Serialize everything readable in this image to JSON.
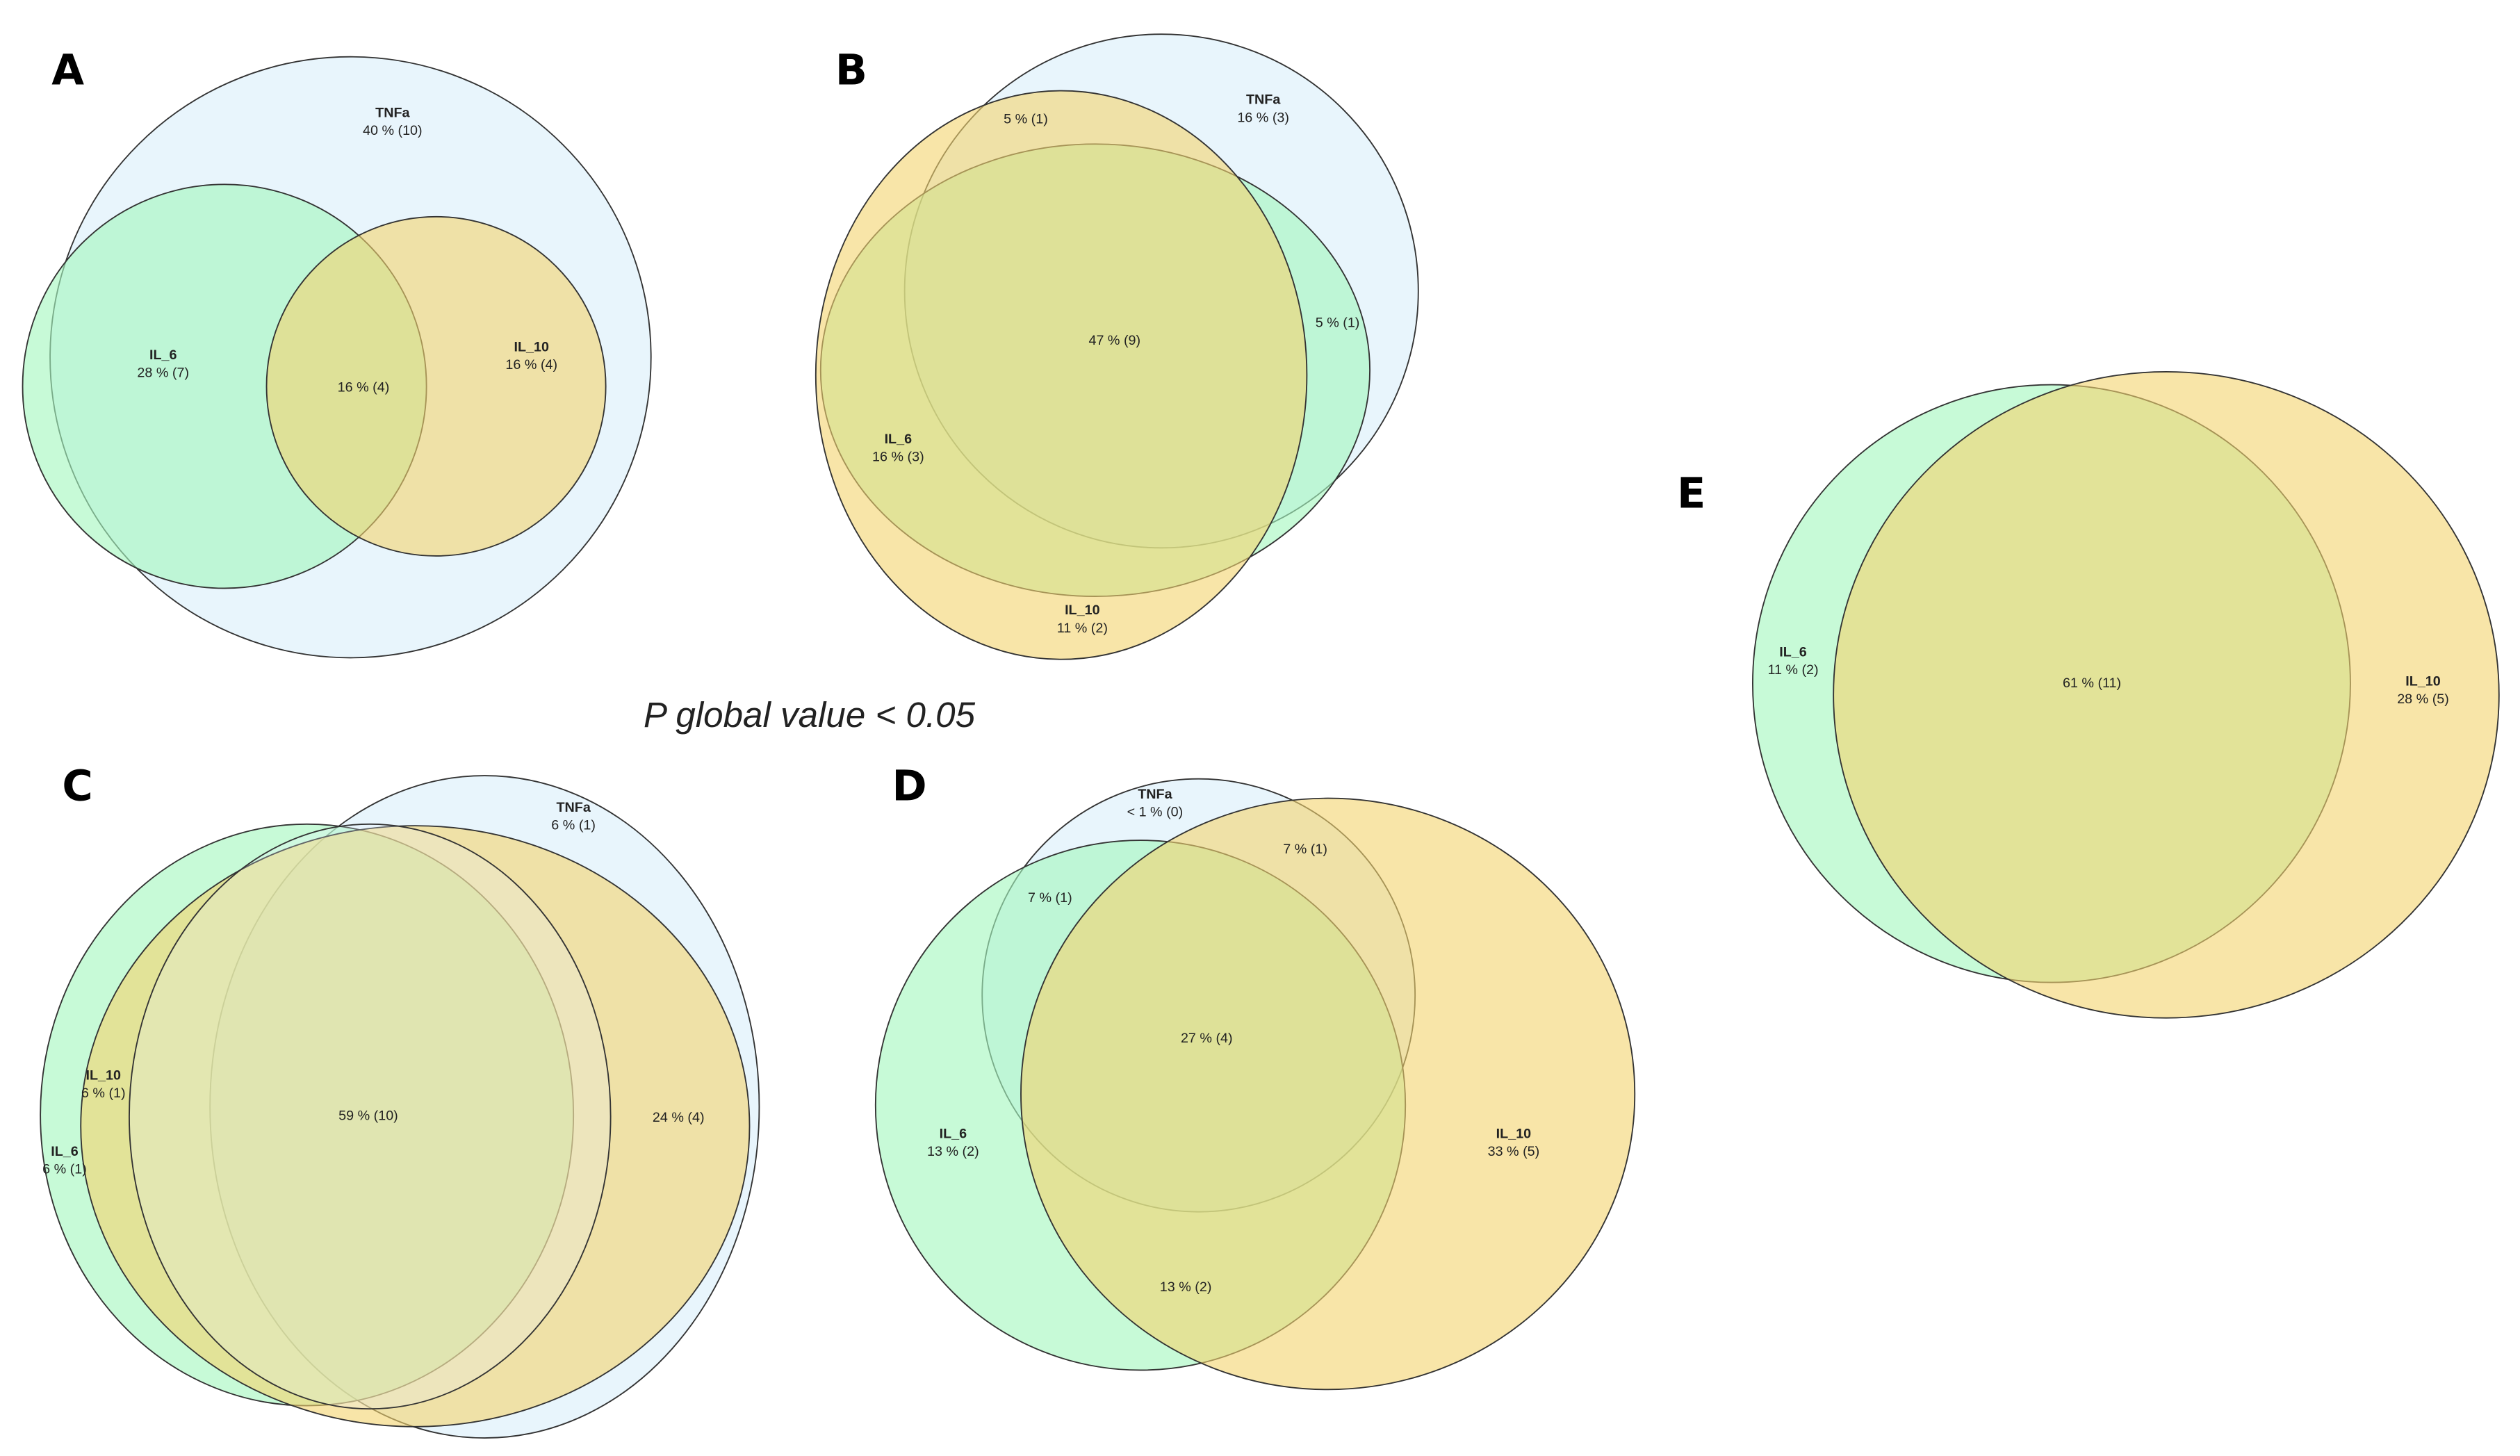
{
  "panels": [
    {
      "letter": "A",
      "sets": [
        {
          "name": "TNFa",
          "text": "40 % (10)"
        },
        {
          "name": "IL_6",
          "text": "28 % (7)"
        },
        {
          "name": "IL_10",
          "text": "16 % (4)"
        }
      ],
      "overlaps": [
        "16 % (4)"
      ]
    },
    {
      "letter": "B",
      "sets": [
        {
          "name": "TNFa",
          "text": "16 % (3)"
        },
        {
          "name": "IL_6",
          "text": "16 % (3)"
        },
        {
          "name": "IL_10",
          "text": "11 % (2)"
        }
      ],
      "overlaps": [
        "5 % (1)",
        "47 % (9)",
        "5 % (1)"
      ]
    },
    {
      "letter": "C",
      "sets": [
        {
          "name": "TNFa",
          "text": "6 % (1)"
        },
        {
          "name": "IL_10",
          "text": "6 % (1)"
        },
        {
          "name": "IL_6",
          "text": "6 % (1)"
        }
      ],
      "overlaps": [
        "59 % (10)",
        "24 % (4)"
      ]
    },
    {
      "letter": "D",
      "sets": [
        {
          "name": "TNFa",
          "text": "< 1 % (0)"
        },
        {
          "name": "IL_6",
          "text": "13 % (2)"
        },
        {
          "name": "IL_10",
          "text": "33 % (5)"
        }
      ],
      "overlaps": [
        "7 % (1)",
        "7 % (1)",
        "27 % (4)",
        "13 % (2)"
      ]
    },
    {
      "letter": "E",
      "sets": [
        {
          "name": "IL_6",
          "text": "11 % (2)"
        },
        {
          "name": "IL_10",
          "text": "28 % (5)"
        }
      ],
      "overlaps": [
        "61 % (11)"
      ]
    }
  ],
  "note": "P global value < 0.05"
}
